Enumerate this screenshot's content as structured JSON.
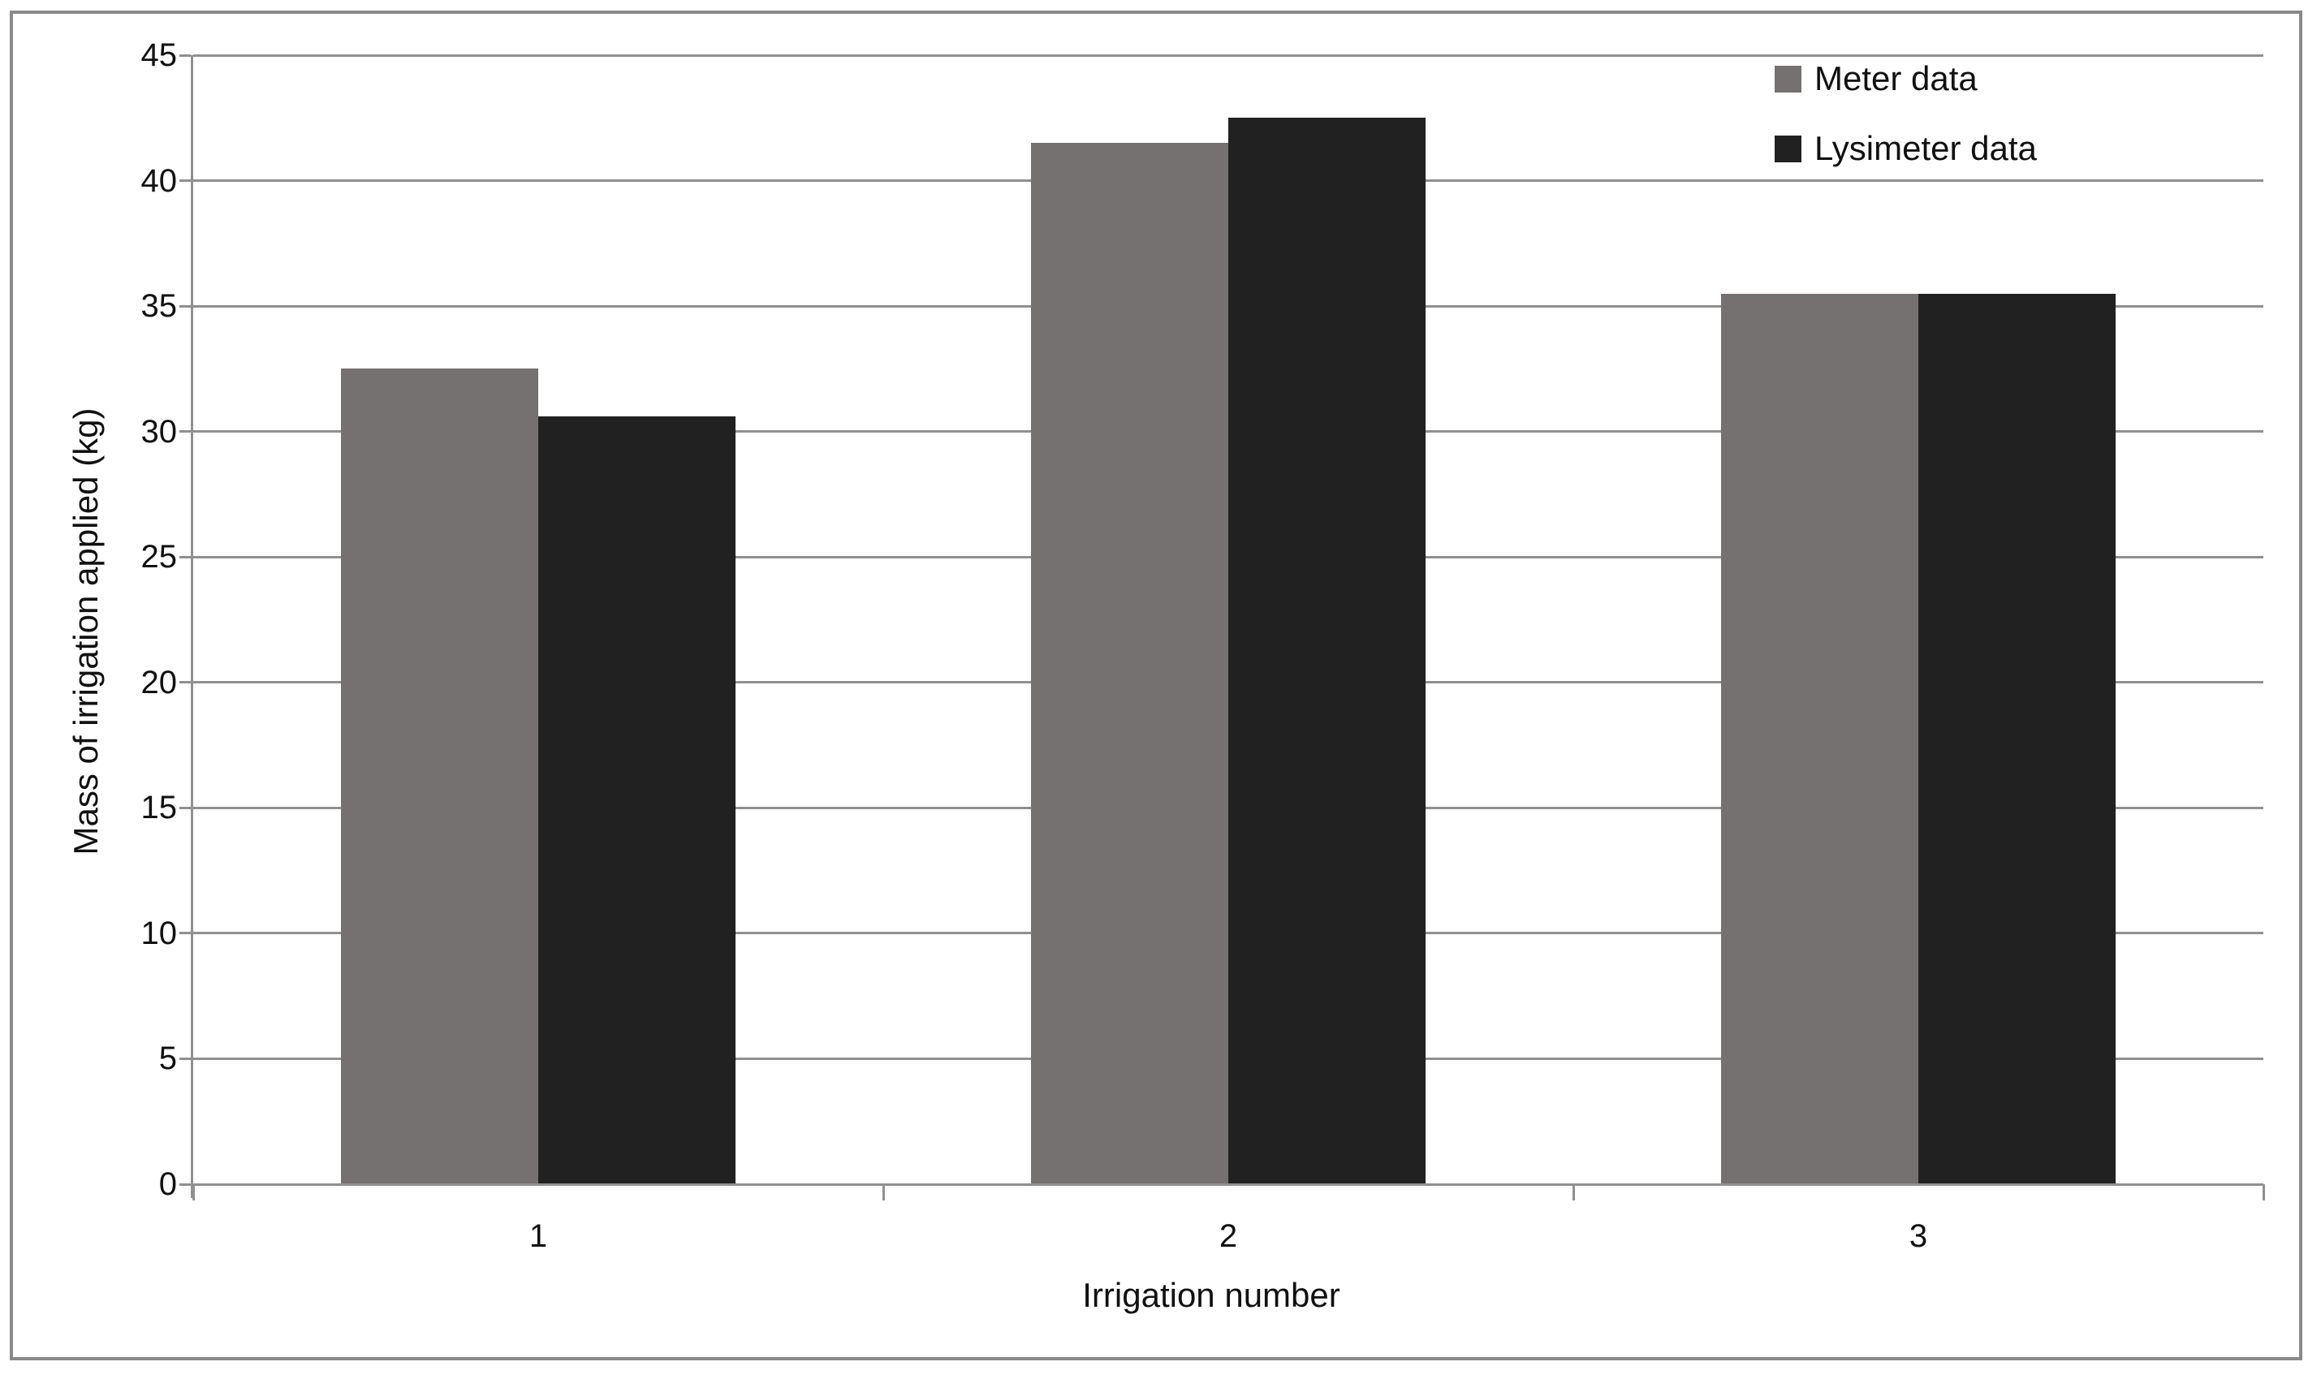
{
  "chart_data": {
    "type": "bar",
    "categories": [
      "1",
      "2",
      "3"
    ],
    "series": [
      {
        "name": "Meter data",
        "color": "#767171",
        "values": [
          32.5,
          41.5,
          35.5
        ]
      },
      {
        "name": "Lysimeter data",
        "color": "#212121",
        "values": [
          30.6,
          42.5,
          35.5
        ]
      }
    ],
    "xlabel": "Irrigation number",
    "ylabel": "Mass of irrigation applied (kg)",
    "ylim": [
      0,
      45
    ],
    "yticks": [
      0,
      5,
      10,
      15,
      20,
      25,
      30,
      35,
      40,
      45
    ],
    "grid": "horizontal-gridlines-on",
    "legend_position": "top-right",
    "bar_gap_ratio": 1.5
  },
  "colors": {
    "gridline": "#909090",
    "axis": "#909090",
    "frame_border": "#8a8a8a",
    "text": "#111111",
    "background": "#ffffff"
  }
}
